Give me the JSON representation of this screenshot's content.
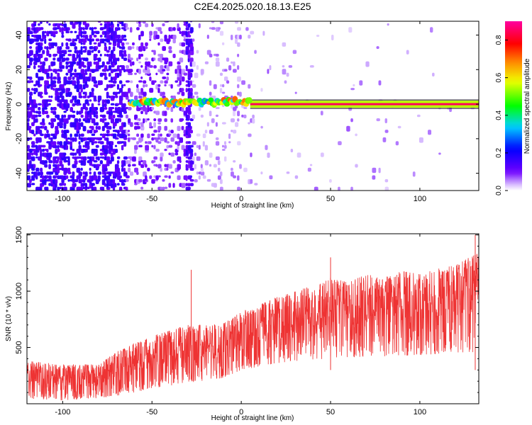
{
  "figure": {
    "title": "C2E4.2025.020.18.13.E25"
  },
  "chart_data": [
    {
      "type": "heatmap",
      "title": "C2E4.2025.020.18.13.E25",
      "xlabel": "Height of straight line (km)",
      "ylabel": "Frequency (Hz)",
      "xlim": [
        -120,
        133
      ],
      "ylim": [
        -50,
        48
      ],
      "xticks": [
        -100,
        -50,
        0,
        50,
        100
      ],
      "yticks": [
        -40,
        -20,
        0,
        20,
        40
      ],
      "grid": false,
      "colorbar": {
        "label": "Normalized spectral amplitude",
        "range": [
          0.0,
          0.9
        ],
        "ticks": [
          0.0,
          0.2,
          0.4,
          0.6,
          0.8
        ],
        "colormap": [
          "#ffffff",
          "#7000ff",
          "#0000ff",
          "#00d0ff",
          "#00ff00",
          "#ffff00",
          "#ff8000",
          "#ff0000",
          "#ff00a0"
        ]
      },
      "features": {
        "noise_region_x": [
          -120,
          -28
        ],
        "dense_noise_x": [
          -120,
          -65
        ],
        "strong_noise_column_x": -30,
        "frequency_band_y": [
          -2,
          2
        ],
        "band_start_x": -62,
        "band_saturated_from_x": 5,
        "band_peak_amplitude": 0.85
      }
    },
    {
      "type": "line",
      "xlabel": "Height of straight line (km)",
      "ylabel": "SNR (10 * v/v)",
      "xlim": [
        -120,
        133
      ],
      "ylim": [
        0,
        1510
      ],
      "xticks": [
        -100,
        -50,
        0,
        50,
        100
      ],
      "yticks": [
        500,
        1000,
        1500
      ],
      "grid": false,
      "series_color": "#ee3333",
      "envelope": {
        "x": [
          -120,
          -100,
          -80,
          -70,
          -60,
          -50,
          -40,
          -30,
          -20,
          -10,
          0,
          10,
          20,
          30,
          40,
          50,
          60,
          70,
          80,
          90,
          100,
          110,
          120,
          133
        ],
        "upper": [
          380,
          350,
          350,
          460,
          540,
          600,
          650,
          700,
          700,
          720,
          820,
          880,
          950,
          1000,
          1050,
          1120,
          1080,
          1150,
          1120,
          1180,
          1150,
          1200,
          1230,
          1350
        ],
        "lower": [
          40,
          30,
          50,
          70,
          100,
          130,
          160,
          190,
          200,
          230,
          300,
          330,
          360,
          380,
          390,
          400,
          410,
          420,
          420,
          430,
          430,
          440,
          450,
          460
        ]
      },
      "spikes": [
        {
          "x": -28,
          "y": 1190
        },
        {
          "x": 50,
          "y": 1300
        },
        {
          "x": 131,
          "y": 1500
        }
      ]
    }
  ]
}
